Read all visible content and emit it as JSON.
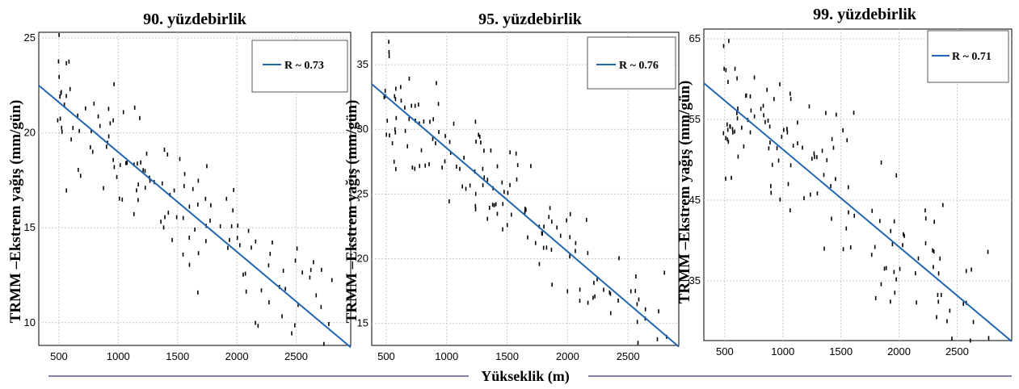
{
  "bottom_label": "Yükseklik (m)",
  "colors": {
    "fit_line": "#2166b0",
    "points": "#000000",
    "grid": "#c8c8c8",
    "bottom_rule": "#3a3a7a"
  },
  "chart_data": [
    {
      "type": "scatter",
      "title": "90. yüzdebirlik",
      "ylabel": "TRMM –Ekstrem yağış (mm/gün)",
      "xlim": [
        330,
        2960
      ],
      "ylim": [
        8.8,
        25.3
      ],
      "xticks": [
        500,
        1000,
        1500,
        2000,
        2500
      ],
      "yticks": [
        10,
        15,
        20,
        25
      ],
      "legend": {
        "label": "R ~ 0.73",
        "placement": "top-right"
      },
      "fit": {
        "x": [
          330,
          2960
        ],
        "y": [
          22.5,
          8.7
        ]
      },
      "seed": 11,
      "n_points": 140,
      "noise": 1.6
    },
    {
      "type": "scatter",
      "title": "95. yüzdebirlik",
      "ylabel": "TRMM –Ekstrem yağış (mm/gün)",
      "xlim": [
        380,
        2920
      ],
      "ylim": [
        13.3,
        37.5
      ],
      "xticks": [
        500,
        1000,
        1500,
        2000,
        2500
      ],
      "yticks": [
        15,
        20,
        25,
        30,
        35
      ],
      "legend": {
        "label": "R ~ 0.76",
        "placement": "top-right"
      },
      "fit": {
        "x": [
          380,
          2920
        ],
        "y": [
          33.5,
          13.2
        ]
      },
      "seed": 23,
      "n_points": 150,
      "noise": 2.2
    },
    {
      "type": "scatter",
      "title": "99. yüzdebirlik",
      "ylabel": "TRMM –Ekstrem yağış (mm/gün)",
      "xlim": [
        320,
        2970
      ],
      "ylim": [
        27.6,
        66.2
      ],
      "xticks": [
        500,
        1000,
        1500,
        2000,
        2500
      ],
      "yticks": [
        35,
        45,
        55,
        65
      ],
      "legend": {
        "label": "R ~ 0.71",
        "placement": "top-right"
      },
      "fit": {
        "x": [
          320,
          2970
        ],
        "y": [
          59.5,
          27.5
        ]
      },
      "seed": 37,
      "n_points": 145,
      "noise": 4.3
    }
  ]
}
